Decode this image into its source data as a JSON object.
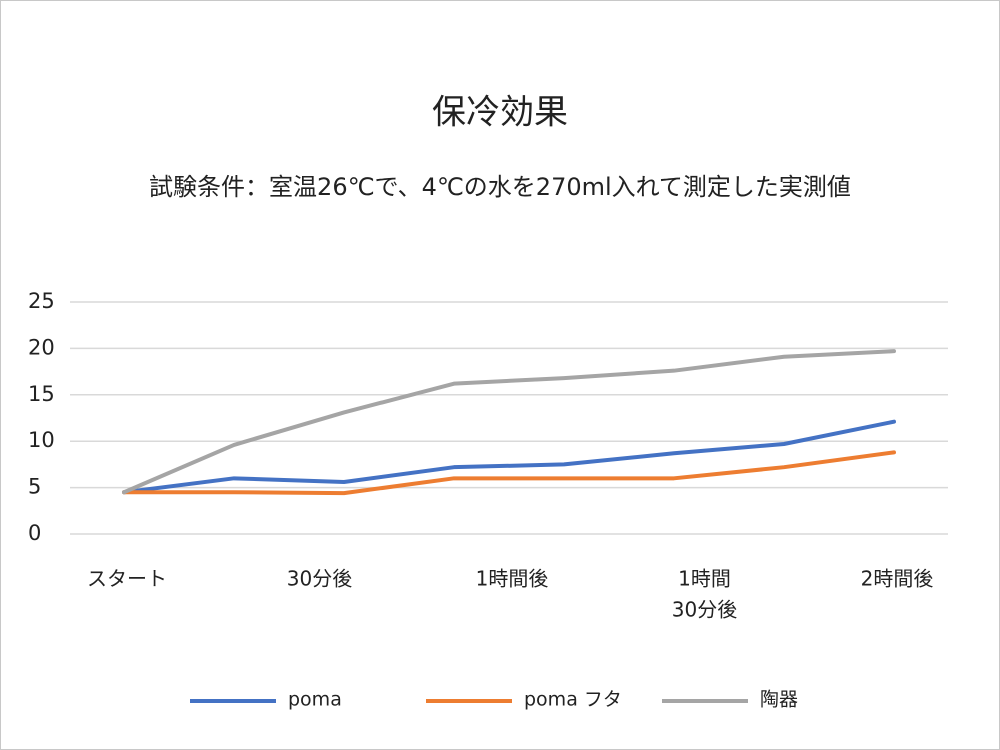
{
  "chart_data": {
    "type": "line",
    "title": "保冷効果",
    "subtitle": "試験条件：室温26℃で、4℃の水を270ml入れて測定した実測値",
    "x_labels": [
      [
        "スタート"
      ],
      [
        "30分後"
      ],
      [
        "1時間後"
      ],
      [
        "1時間",
        "30分後"
      ],
      [
        "2時間後"
      ]
    ],
    "points": 8,
    "series": [
      {
        "name": "poma",
        "color": "#4472c4",
        "values": [
          4.5,
          6.0,
          5.6,
          7.2,
          7.5,
          8.7,
          9.7,
          12.1
        ]
      },
      {
        "name": "poma フタ",
        "color": "#ed7d31",
        "values": [
          4.5,
          4.5,
          4.4,
          6.0,
          6.0,
          6.0,
          7.2,
          8.8
        ]
      },
      {
        "name": "陶器",
        "color": "#a5a5a5",
        "values": [
          4.5,
          9.6,
          13.1,
          16.2,
          16.8,
          17.6,
          19.1,
          19.7
        ]
      }
    ],
    "ylim": [
      0,
      25
    ],
    "yticks": [
      0,
      5,
      10,
      15,
      20,
      25
    ],
    "grid": true,
    "legend": "bottom"
  }
}
